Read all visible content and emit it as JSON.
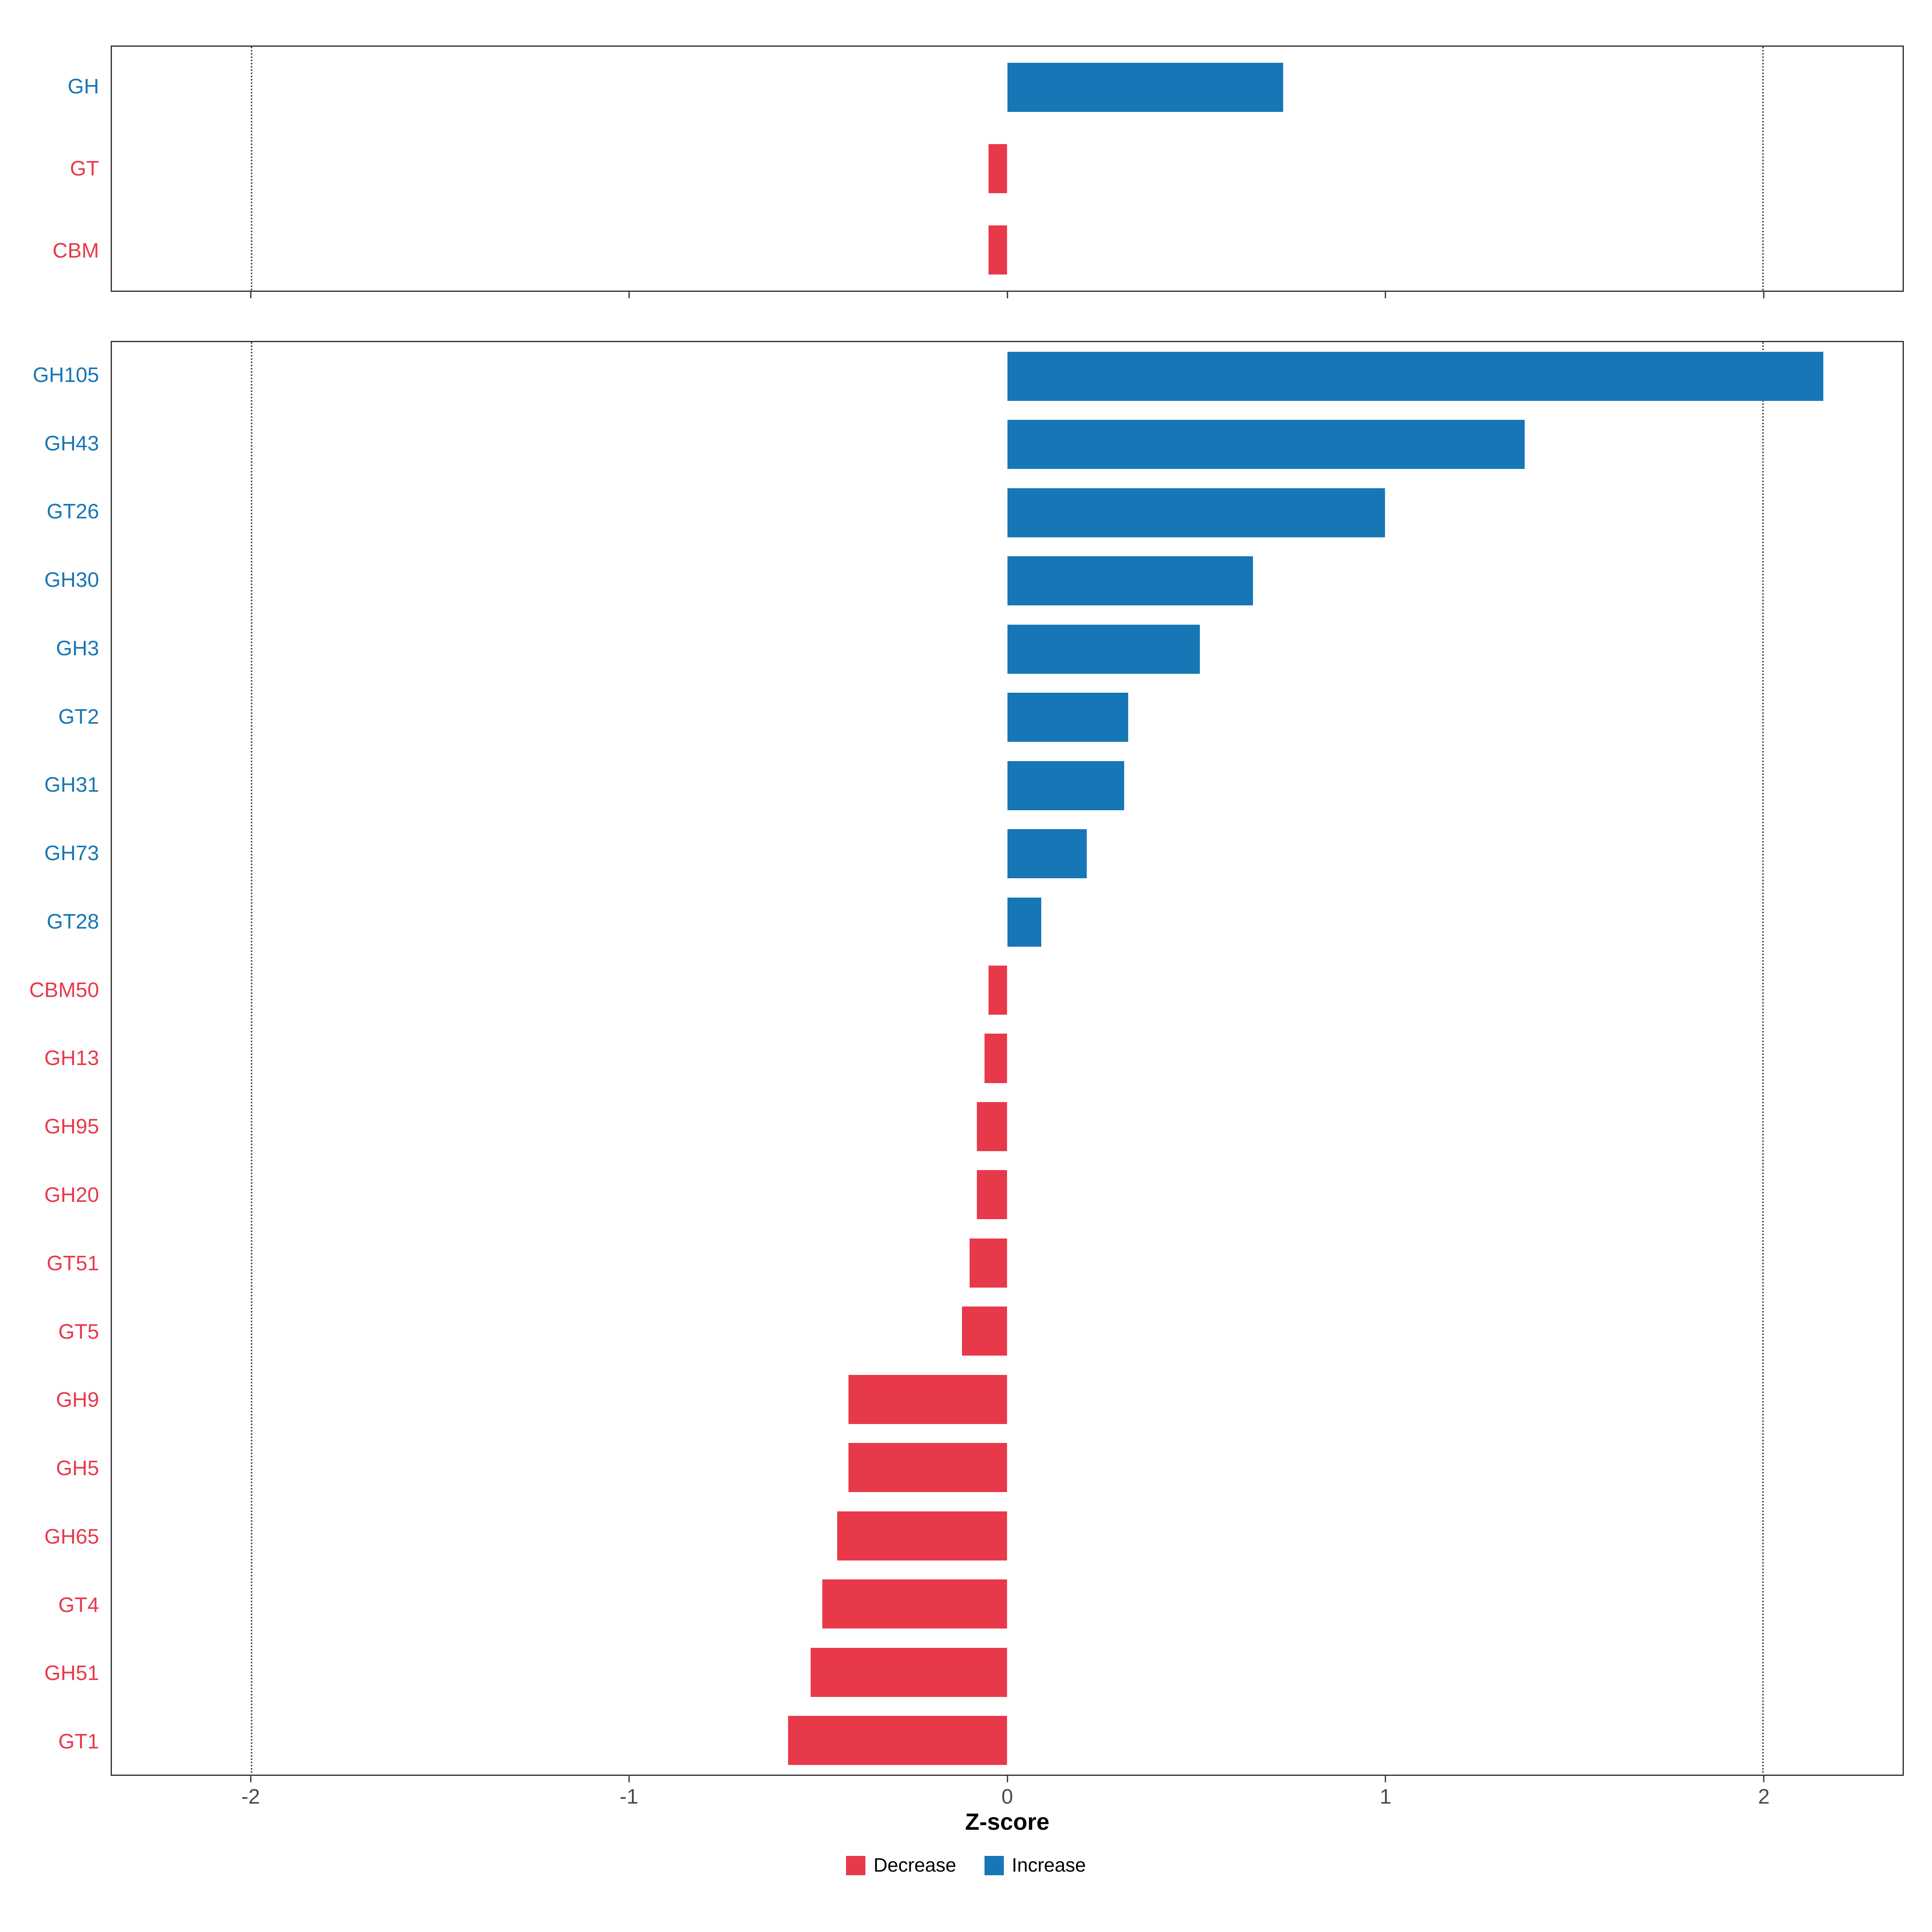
{
  "chart_data": [
    {
      "type": "bar",
      "orientation": "horizontal",
      "panel": "top",
      "categories": [
        "GH",
        "GT",
        "CBM"
      ],
      "values": [
        0.73,
        -0.05,
        -0.05
      ],
      "xlim": [
        -2.37,
        2.37
      ],
      "x_ticks": [
        -2,
        -1,
        0,
        1,
        2
      ],
      "reference_lines": [
        -2,
        2
      ],
      "bar_fraction": 0.6
    },
    {
      "type": "bar",
      "orientation": "horizontal",
      "panel": "bottom",
      "categories": [
        "GH105",
        "GH43",
        "GT26",
        "GH30",
        "GH3",
        "GT2",
        "GH31",
        "GH73",
        "GT28",
        "CBM50",
        "GH13",
        "GH95",
        "GH20",
        "GT51",
        "GT5",
        "GH9",
        "GH5",
        "GH65",
        "GT4",
        "GH51",
        "GT1"
      ],
      "values": [
        2.16,
        1.37,
        1.0,
        0.65,
        0.51,
        0.32,
        0.31,
        0.21,
        0.09,
        -0.05,
        -0.06,
        -0.08,
        -0.08,
        -0.1,
        -0.12,
        -0.42,
        -0.42,
        -0.45,
        -0.49,
        -0.52,
        -0.58
      ],
      "xlim": [
        -2.37,
        2.37
      ],
      "x_ticks": [
        -2,
        -1,
        0,
        1,
        2
      ],
      "xlabel": "Z-score",
      "reference_lines": [
        -2,
        2
      ],
      "bar_fraction": 0.72
    }
  ],
  "axis": {
    "tick_labels": [
      "-2",
      "-1",
      "0",
      "1",
      "2"
    ],
    "tick_values": [
      -2,
      -1,
      0,
      1,
      2
    ],
    "label": "Z-score"
  },
  "legend": {
    "items": [
      {
        "label": "Decrease",
        "color": "#E8394A"
      },
      {
        "label": "Increase",
        "color": "#1776B5"
      }
    ]
  },
  "colors": {
    "increase": "#1776B5",
    "decrease": "#E8394A",
    "panel_border": "#2f2f2f",
    "tick_text": "#4a4a4a"
  }
}
